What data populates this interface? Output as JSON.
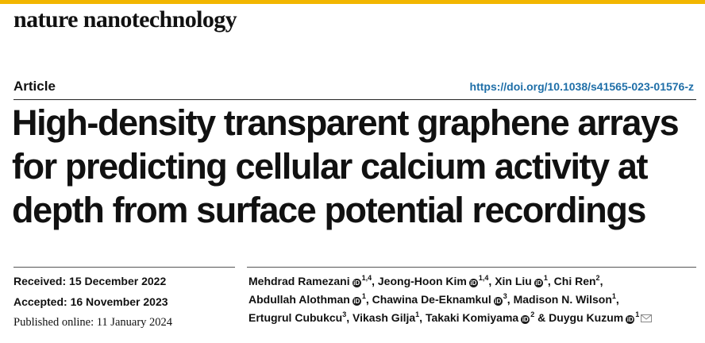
{
  "journal": {
    "name": "nature nanotechnology"
  },
  "article": {
    "type": "Article",
    "doi": "https://doi.org/10.1038/s41565-023-01576-z",
    "title_lines": [
      "High-density transparent graphene arrays",
      "for predicting cellular calcium activity at",
      "depth from surface potential recordings"
    ]
  },
  "dates": {
    "received_label": "Received:",
    "received_value": "15 December 2022",
    "accepted_label": "Accepted:",
    "accepted_value": "16 November 2023",
    "published": "Published online: 11 January 2024"
  },
  "authors": [
    {
      "name": "Mehdrad Ramezani",
      "orcid": true,
      "aff": "1,4",
      "sep": ", "
    },
    {
      "name": "Jeong-Hoon Kim",
      "orcid": true,
      "aff": "1,4",
      "sep": ", "
    },
    {
      "name": "Xin Liu",
      "orcid": true,
      "aff": "1",
      "sep": ", "
    },
    {
      "name": "Chi Ren",
      "orcid": false,
      "aff": "2",
      "sep": ","
    },
    {
      "name": "Abdullah Alothman",
      "orcid": true,
      "aff": "1",
      "sep": ", "
    },
    {
      "name": "Chawina De-Eknamkul",
      "orcid": true,
      "aff": "3",
      "sep": ", "
    },
    {
      "name": "Madison N. Wilson",
      "orcid": false,
      "aff": "1",
      "sep": ","
    },
    {
      "name": "Ertugrul Cubukcu",
      "orcid": false,
      "aff": "3",
      "sep": ", "
    },
    {
      "name": "Vikash Gilja",
      "orcid": false,
      "aff": "1",
      "sep": ", "
    },
    {
      "name": "Takaki Komiyama",
      "orcid": true,
      "aff": "2",
      "sep": " & "
    },
    {
      "name": "Duygu Kuzum",
      "orcid": true,
      "aff": "1",
      "sep": ""
    }
  ],
  "icons": {
    "orcid": "orcid-icon",
    "corresponding": "envelope-icon"
  },
  "colors": {
    "accent_bar": "#f2b600",
    "doi_link": "#1f6fa8"
  }
}
